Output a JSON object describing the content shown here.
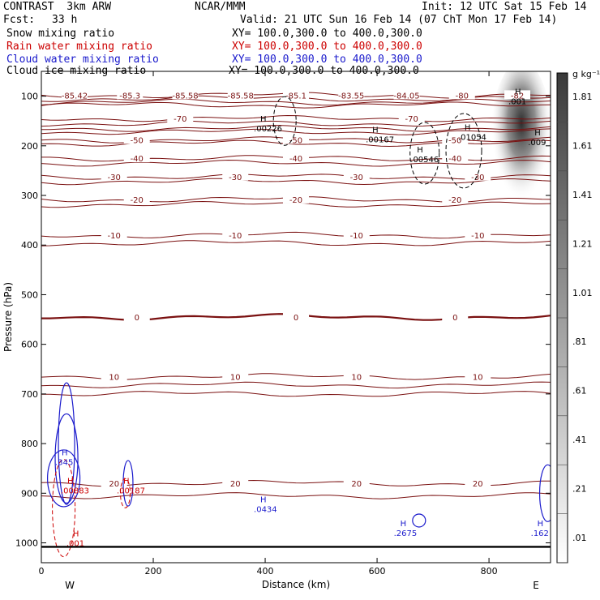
{
  "header": {
    "title": "CONTRAST  3km ARW",
    "center": "NCAR/MMM",
    "init": "Init: 12 UTC Sat 15 Feb 14",
    "fcst_label": "Fcst:",
    "fcst_value": "33 h",
    "valid": "Valid: 21 UTC Sun 16 Feb 14 (07 ChT Mon 17 Feb 14)"
  },
  "fields": [
    {
      "name": "Snow mixing ratio",
      "xy": "XY= 100.0,300.0 to 400.0,300.0",
      "color": "#000000"
    },
    {
      "name": "Rain water mixing ratio",
      "xy": "XY= 100.0,300.0 to 400.0,300.0",
      "color": "#cc0000"
    },
    {
      "name": "Cloud water mixing ratio",
      "xy": "XY= 100.0,300.0 to 400.0,300.0",
      "color": "#1a1acc"
    },
    {
      "name": "Cloud ice mixing ratio",
      "xy": "XY= 100.0,300.0 to 400.0,300.0",
      "color": "#000000"
    }
  ],
  "chart_data": {
    "type": "cross-section",
    "xlabel": "Distance (km)",
    "ylabel": "Pressure (hPa)",
    "xlim": [
      0,
      910
    ],
    "ylim": [
      1040,
      50
    ],
    "x_ticks": [
      "0",
      "200",
      "400",
      "600",
      "800"
    ],
    "x_tick_values": [
      0,
      200,
      400,
      600,
      800
    ],
    "y_ticks": [
      "100",
      "200",
      "300",
      "400",
      "500",
      "600",
      "700",
      "800",
      "900",
      "1000"
    ],
    "y_tick_values": [
      100,
      200,
      300,
      400,
      500,
      600,
      700,
      800,
      900,
      1000
    ],
    "endpoints": {
      "left": "W",
      "right": "E"
    },
    "colorbar": {
      "unit": "g kg⁻¹",
      "ticks": [
        ".01",
        ".21",
        ".41",
        ".61",
        ".81",
        "1.01",
        "1.21",
        "1.41",
        "1.61",
        "1.81"
      ]
    },
    "temperature_contours": [
      {
        "value": -80,
        "pressures": [
          98,
          105,
          112,
          118
        ],
        "labels": [
          "-85.42",
          "-85.3",
          "-85.58",
          "-85.58",
          "-85.1",
          "-83.55",
          "-84.05",
          "-80",
          "-82"
        ]
      },
      {
        "value": -70,
        "pressures": [
          145,
          155
        ],
        "labels": [
          "-70",
          "-70"
        ]
      },
      {
        "value": -60,
        "pressures": [
          165,
          172
        ],
        "labels": []
      },
      {
        "value": -50,
        "pressures": [
          188,
          195
        ],
        "labels": [
          "-50",
          "-50",
          "-50"
        ]
      },
      {
        "value": -40,
        "pressures": [
          225,
          235
        ],
        "labels": [
          "-40",
          "-40",
          "-40"
        ]
      },
      {
        "value": -30,
        "pressures": [
          262,
          272
        ],
        "labels": [
          "-30",
          "-30",
          "-30",
          "-30"
        ]
      },
      {
        "value": -20,
        "pressures": [
          308,
          318
        ],
        "labels": [
          "-20",
          "-20",
          "-20"
        ]
      },
      {
        "value": -10,
        "pressures": [
          380,
          396
        ],
        "labels": [
          "-10",
          "-10",
          "-10",
          "-10"
        ]
      },
      {
        "value": 0,
        "pressures": [
          545
        ],
        "labels": [
          "0",
          "0",
          "0"
        ]
      },
      {
        "value": 10,
        "pressures": [
          665,
          682,
          700
        ],
        "labels": [
          "10",
          "10",
          "10",
          "10"
        ]
      },
      {
        "value": 20,
        "pressures": [
          880,
          905
        ],
        "labels": [
          "20",
          "20",
          "20",
          "20"
        ]
      }
    ],
    "maxima_labels": [
      {
        "field": "cloud ice",
        "text": ".00226",
        "x": 400,
        "p": 168
      },
      {
        "field": "cloud ice",
        "text": ".00167",
        "x": 600,
        "p": 190
      },
      {
        "field": "cloud ice",
        "text": ".01054",
        "x": 765,
        "p": 185
      },
      {
        "field": "cloud ice",
        "text": ".00546",
        "x": 680,
        "p": 230
      },
      {
        "field": "snow",
        "text": ".001",
        "x": 855,
        "p": 113
      },
      {
        "field": "snow",
        "text": ".009",
        "x": 890,
        "p": 195
      },
      {
        "field": "cloud water",
        "text": ".345",
        "x": 45,
        "p": 840
      },
      {
        "field": "cloud water",
        "text": ".0434",
        "x": 400,
        "p": 935
      },
      {
        "field": "cloud water",
        "text": ".2675",
        "x": 650,
        "p": 983
      },
      {
        "field": "cloud water",
        "text": ".162",
        "x": 895,
        "p": 983
      },
      {
        "field": "rain",
        "text": ".00883",
        "x": 55,
        "p": 897
      },
      {
        "field": "rain",
        "text": ".00187",
        "x": 155,
        "p": 897
      },
      {
        "field": "rain",
        "text": ".001",
        "x": 65,
        "p": 1003
      }
    ],
    "ground_pressure": 1008
  }
}
